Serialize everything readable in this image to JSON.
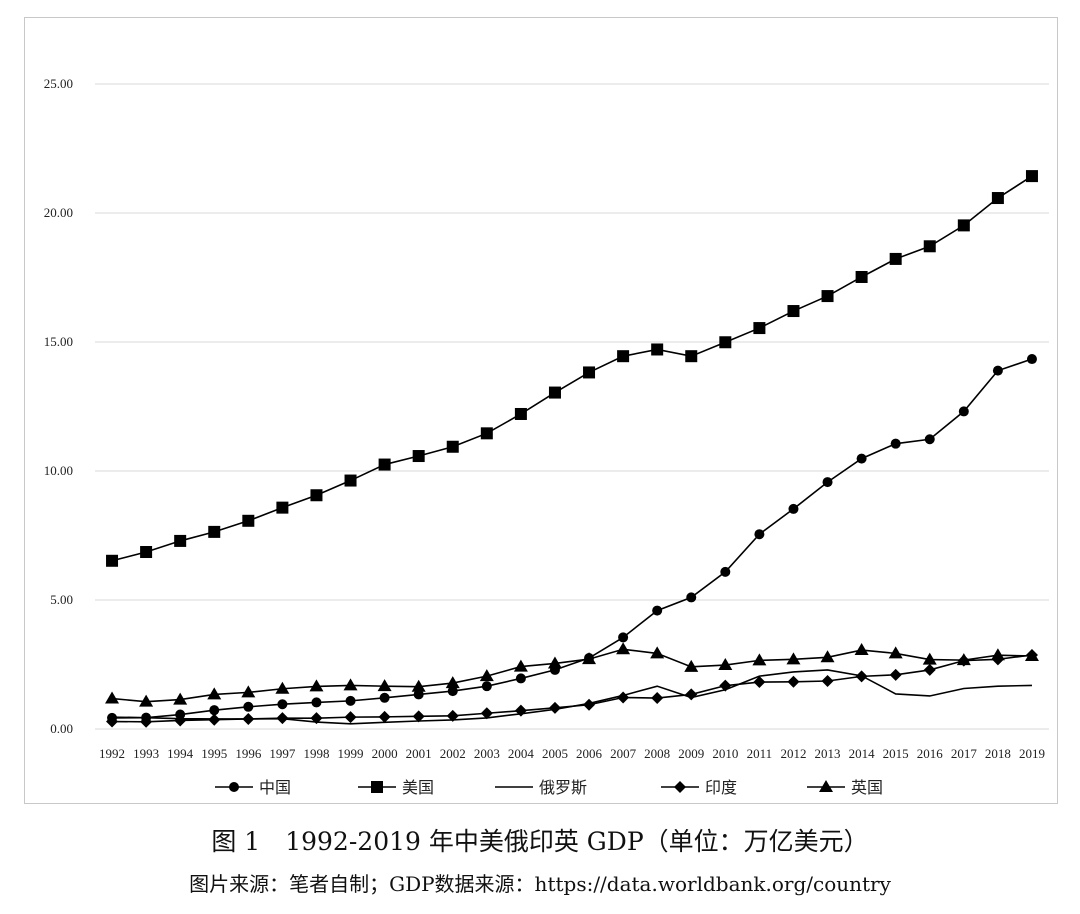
{
  "caption": "图 1　1992-2019 年中美俄印英 GDP（单位：万亿美元）",
  "source_note": "图片来源：笔者自制；GDP数据来源：https://data.worldbank.org/country",
  "chart_data": {
    "type": "line",
    "title": "",
    "xlabel": "",
    "ylabel": "",
    "categories": [
      "1992",
      "1993",
      "1994",
      "1995",
      "1996",
      "1997",
      "1998",
      "1999",
      "2000",
      "2001",
      "2002",
      "2003",
      "2004",
      "2005",
      "2006",
      "2007",
      "2008",
      "2009",
      "2010",
      "2011",
      "2012",
      "2013",
      "2014",
      "2015",
      "2016",
      "2017",
      "2018",
      "2019"
    ],
    "ylim": [
      0,
      25
    ],
    "yticks": [
      "0.00",
      "5.00",
      "10.00",
      "15.00",
      "20.00",
      "25.00"
    ],
    "grid": true,
    "legend_position": "bottom",
    "series": [
      {
        "name": "中国",
        "marker": "circle",
        "values": [
          0.43,
          0.44,
          0.56,
          0.73,
          0.86,
          0.96,
          1.03,
          1.09,
          1.21,
          1.34,
          1.47,
          1.66,
          1.96,
          2.29,
          2.75,
          3.55,
          4.59,
          5.1,
          6.09,
          7.55,
          8.53,
          9.57,
          10.48,
          11.06,
          11.23,
          12.31,
          13.89,
          14.34
        ]
      },
      {
        "name": "美国",
        "marker": "square",
        "values": [
          6.52,
          6.86,
          7.29,
          7.64,
          8.07,
          8.58,
          9.06,
          9.63,
          10.25,
          10.58,
          10.94,
          11.46,
          12.21,
          13.04,
          13.82,
          14.45,
          14.71,
          14.45,
          14.99,
          15.54,
          16.2,
          16.78,
          17.52,
          18.22,
          18.71,
          19.52,
          20.58,
          21.43
        ]
      },
      {
        "name": "俄罗斯",
        "marker": "none",
        "values": [
          0.46,
          0.44,
          0.4,
          0.39,
          0.39,
          0.4,
          0.27,
          0.2,
          0.26,
          0.31,
          0.35,
          0.43,
          0.59,
          0.76,
          0.99,
          1.3,
          1.66,
          1.22,
          1.52,
          2.05,
          2.21,
          2.29,
          2.06,
          1.36,
          1.28,
          1.57,
          1.66,
          1.69
        ]
      },
      {
        "name": "印度",
        "marker": "diamond",
        "values": [
          0.29,
          0.28,
          0.33,
          0.36,
          0.39,
          0.42,
          0.42,
          0.46,
          0.47,
          0.49,
          0.51,
          0.61,
          0.71,
          0.82,
          0.94,
          1.22,
          1.2,
          1.34,
          1.68,
          1.82,
          1.83,
          1.86,
          2.04,
          2.1,
          2.29,
          2.65,
          2.7,
          2.87
        ]
      },
      {
        "name": "英国",
        "marker": "triangle",
        "values": [
          1.18,
          1.06,
          1.14,
          1.34,
          1.42,
          1.56,
          1.65,
          1.69,
          1.66,
          1.64,
          1.78,
          2.05,
          2.42,
          2.54,
          2.71,
          3.09,
          2.93,
          2.41,
          2.48,
          2.66,
          2.7,
          2.78,
          3.06,
          2.93,
          2.69,
          2.67,
          2.86,
          2.83
        ]
      }
    ]
  }
}
